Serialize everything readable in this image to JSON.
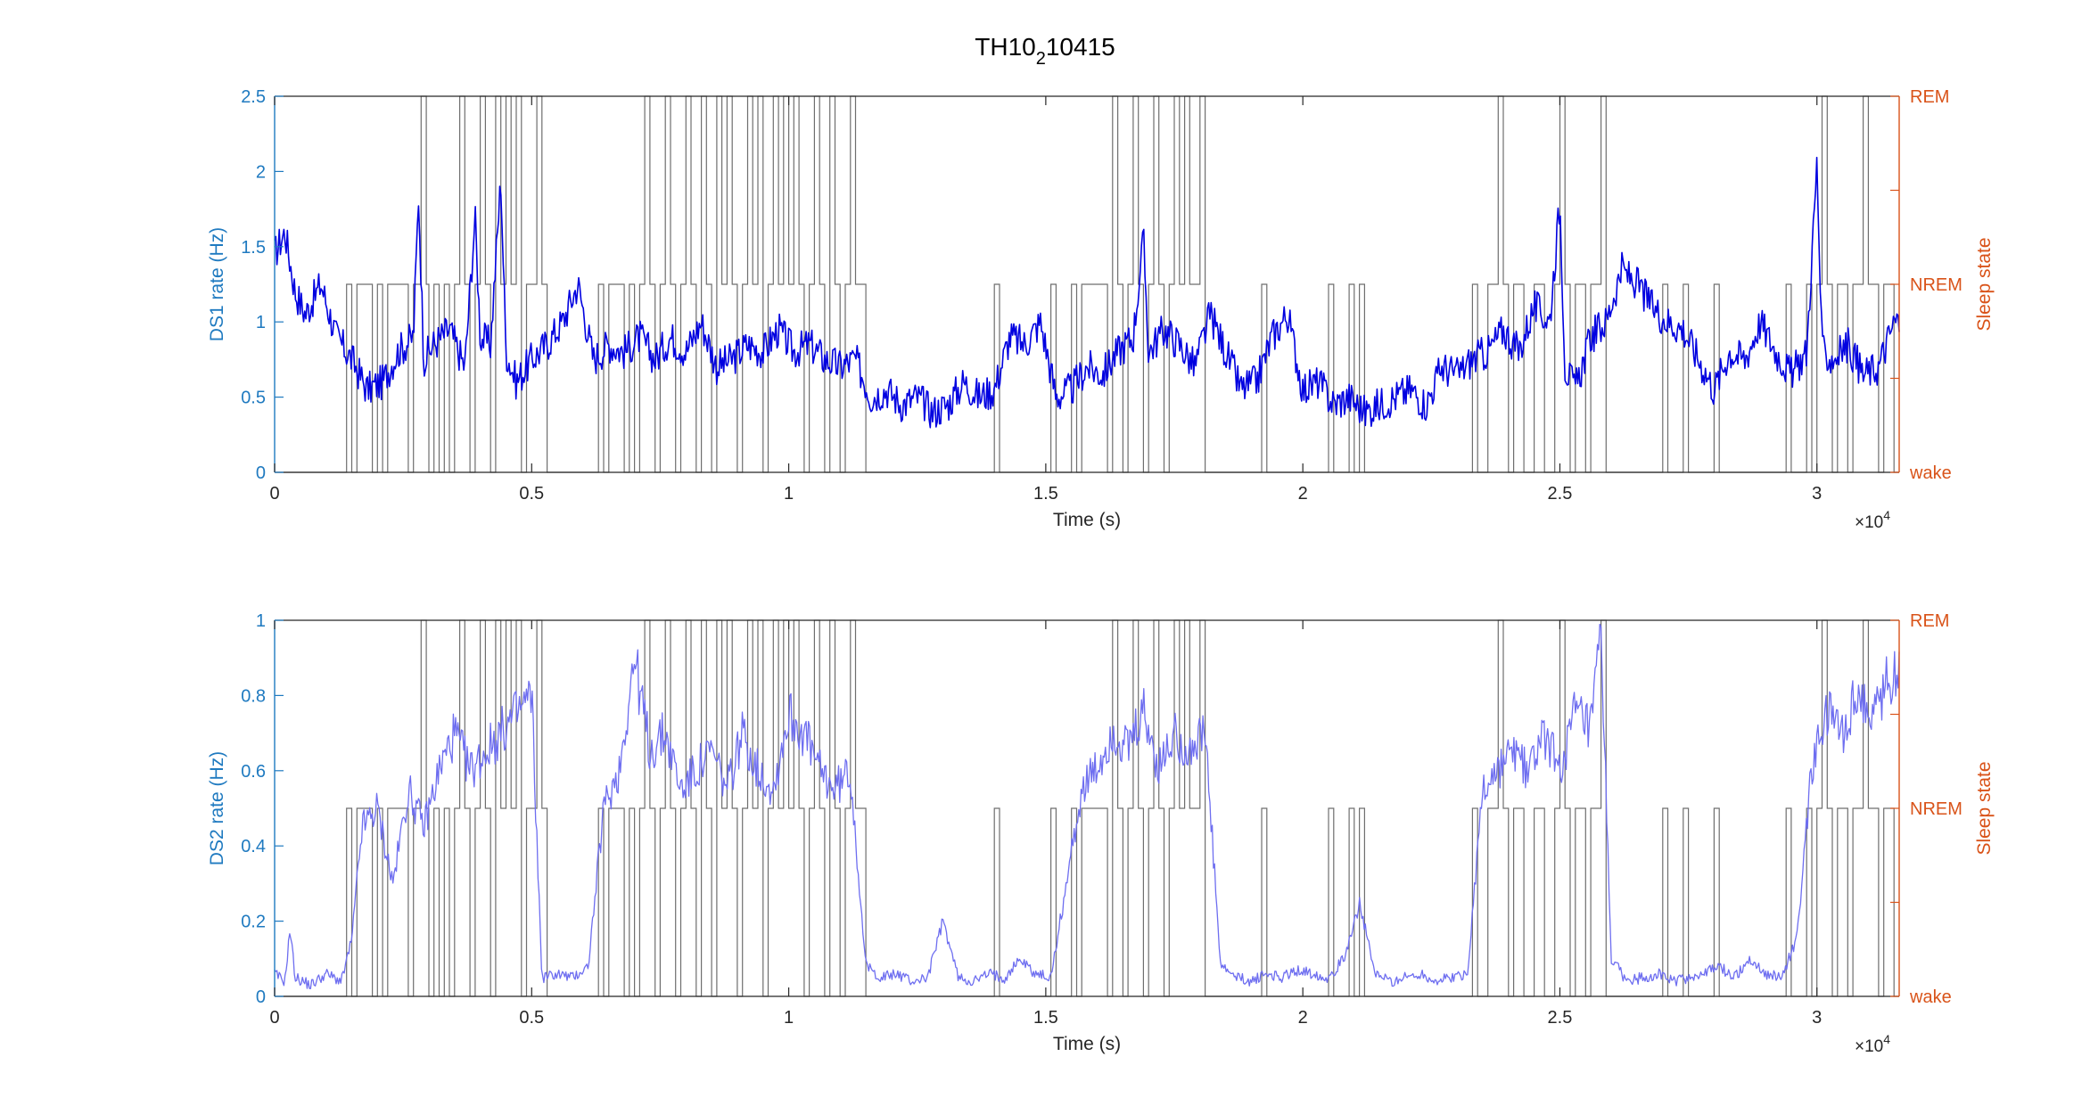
{
  "figure": {
    "title_main": "TH10",
    "title_sub": "2",
    "title_end": "10415"
  },
  "colors": {
    "left_axis": "#1f7ac0",
    "right_axis": "#d95319",
    "rate_line_top": "#0000e0",
    "rate_line_bottom": "#6e6ef0",
    "state_line": "#6e6e6e",
    "frame": "#262626"
  },
  "chart_data": [
    {
      "type": "line",
      "title": "TH10_2 10415",
      "xlabel": "Time (s)",
      "x_exponent_label": "×10",
      "x_exponent_power": "4",
      "xlim": [
        0,
        31600
      ],
      "x_ticks": [
        0,
        5000,
        10000,
        15000,
        20000,
        25000,
        30000
      ],
      "x_tick_labels": [
        "0",
        "0.5",
        "1",
        "1.5",
        "2",
        "2.5",
        "3"
      ],
      "ylabel_left": "DS1 rate (Hz)",
      "ylim_left": [
        0,
        2.5
      ],
      "y_ticks_left": [
        0,
        0.5,
        1,
        1.5,
        2,
        2.5
      ],
      "y_tick_labels_left": [
        "0",
        "0.5",
        "1",
        "1.5",
        "2",
        "2.5"
      ],
      "ylabel_right": "Sleep state",
      "ylim_right": [
        0,
        2
      ],
      "y_ticks_right": [
        0,
        0.5,
        1,
        1.5,
        2
      ],
      "y_tick_labels_right": [
        "wake",
        "",
        "NREM",
        "",
        "REM"
      ],
      "series": [
        {
          "axis": "left",
          "x": [
            0,
            200,
            400,
            600,
            900,
            1200,
            1500,
            1800,
            2100,
            2400,
            2700,
            2800,
            2900,
            3100,
            3400,
            3700,
            3900,
            4000,
            4200,
            4400,
            4500,
            4700,
            5000,
            5300,
            5600,
            5900,
            6200,
            6500,
            6800,
            7100,
            7400,
            7700,
            8000,
            8300,
            8600,
            8900,
            9200,
            9500,
            9800,
            10100,
            10400,
            10700,
            11000,
            11300,
            11600,
            11900,
            12200,
            12500,
            12800,
            13100,
            13400,
            13700,
            14000,
            14300,
            14600,
            14900,
            15200,
            15500,
            15800,
            16100,
            16400,
            16700,
            16900,
            17000,
            17300,
            17600,
            17900,
            18200,
            18500,
            18800,
            19100,
            19400,
            19700,
            20000,
            20300,
            20600,
            20900,
            21200,
            21500,
            21800,
            22100,
            22400,
            22700,
            23000,
            23300,
            23600,
            23900,
            24200,
            24500,
            24800,
            25000,
            25100,
            25300,
            25600,
            25900,
            26200,
            26500,
            26800,
            27100,
            27400,
            27700,
            28000,
            28300,
            28600,
            28900,
            29200,
            29500,
            29800,
            30000,
            30100,
            30300,
            30600,
            30900,
            31200,
            31500
          ],
          "values": [
            1.45,
            1.6,
            1.2,
            1.05,
            1.25,
            0.9,
            0.75,
            0.55,
            0.6,
            0.8,
            0.9,
            1.85,
            0.75,
            0.85,
            0.95,
            0.7,
            1.7,
            0.9,
            0.85,
            1.95,
            0.8,
            0.6,
            0.75,
            0.85,
            1.0,
            1.25,
            0.75,
            0.85,
            0.8,
            0.9,
            0.75,
            0.9,
            0.8,
            1.0,
            0.7,
            0.75,
            0.85,
            0.8,
            0.95,
            0.8,
            0.85,
            0.75,
            0.7,
            0.75,
            0.5,
            0.55,
            0.45,
            0.5,
            0.4,
            0.45,
            0.6,
            0.5,
            0.55,
            0.9,
            0.85,
            1.0,
            0.5,
            0.55,
            0.7,
            0.65,
            0.8,
            0.9,
            1.55,
            0.8,
            0.95,
            0.85,
            0.7,
            1.05,
            0.8,
            0.55,
            0.6,
            0.9,
            1.05,
            0.55,
            0.6,
            0.45,
            0.5,
            0.4,
            0.45,
            0.5,
            0.55,
            0.45,
            0.7,
            0.65,
            0.75,
            0.8,
            0.95,
            0.8,
            1.1,
            1.0,
            1.8,
            0.7,
            0.55,
            0.9,
            1.0,
            1.35,
            1.25,
            1.1,
            1.0,
            0.95,
            0.75,
            0.55,
            0.8,
            0.75,
            1.0,
            0.8,
            0.65,
            0.8,
            2.05,
            0.8,
            0.75,
            0.85,
            0.65,
            0.7,
            1.0
          ]
        }
      ]
    },
    {
      "type": "line",
      "xlabel": "Time (s)",
      "x_exponent_label": "×10",
      "x_exponent_power": "4",
      "xlim": [
        0,
        31600
      ],
      "x_ticks": [
        0,
        5000,
        10000,
        15000,
        20000,
        25000,
        30000
      ],
      "x_tick_labels": [
        "0",
        "0.5",
        "1",
        "1.5",
        "2",
        "2.5",
        "3"
      ],
      "ylabel_left": "DS2 rate (Hz)",
      "ylim_left": [
        0,
        1
      ],
      "y_ticks_left": [
        0,
        0.2,
        0.4,
        0.6,
        0.8,
        1
      ],
      "y_tick_labels_left": [
        "0",
        "0.2",
        "0.4",
        "0.6",
        "0.8",
        "1"
      ],
      "ylabel_right": "Sleep state",
      "ylim_right": [
        0,
        2
      ],
      "y_ticks_right": [
        0,
        0.5,
        1,
        1.5,
        2
      ],
      "y_tick_labels_right": [
        "wake",
        "",
        "NREM",
        "",
        "REM"
      ],
      "series": [
        {
          "axis": "left",
          "x": [
            0,
            200,
            300,
            400,
            700,
            1000,
            1300,
            1500,
            1700,
            2000,
            2300,
            2600,
            2900,
            3200,
            3500,
            3800,
            4100,
            4400,
            4700,
            5000,
            5200,
            5500,
            5800,
            6100,
            6400,
            6700,
            7000,
            7300,
            7600,
            7900,
            8200,
            8500,
            8800,
            9100,
            9400,
            9700,
            10000,
            10300,
            10600,
            10900,
            11200,
            11500,
            11800,
            12100,
            12400,
            12700,
            13000,
            13300,
            13600,
            13900,
            14200,
            14500,
            14800,
            15100,
            15400,
            15700,
            16000,
            16300,
            16600,
            16900,
            17200,
            17500,
            17800,
            18100,
            18400,
            18700,
            19000,
            19300,
            19600,
            19900,
            20200,
            20500,
            20800,
            21100,
            21400,
            21700,
            22000,
            22300,
            22600,
            22900,
            23200,
            23500,
            23800,
            24100,
            24400,
            24700,
            25000,
            25300,
            25600,
            25800,
            26000,
            26300,
            26600,
            26900,
            27200,
            27500,
            27800,
            28100,
            28400,
            28700,
            29000,
            29300,
            29600,
            29900,
            30200,
            30500,
            30800,
            31100,
            31400
          ],
          "values": [
            0.06,
            0.04,
            0.18,
            0.05,
            0.03,
            0.06,
            0.04,
            0.15,
            0.45,
            0.5,
            0.3,
            0.55,
            0.45,
            0.6,
            0.7,
            0.6,
            0.65,
            0.7,
            0.75,
            0.8,
            0.05,
            0.06,
            0.05,
            0.08,
            0.5,
            0.6,
            0.9,
            0.65,
            0.7,
            0.55,
            0.6,
            0.65,
            0.55,
            0.7,
            0.6,
            0.55,
            0.75,
            0.7,
            0.6,
            0.55,
            0.6,
            0.08,
            0.05,
            0.06,
            0.04,
            0.05,
            0.2,
            0.05,
            0.04,
            0.06,
            0.05,
            0.1,
            0.06,
            0.05,
            0.3,
            0.55,
            0.6,
            0.7,
            0.65,
            0.75,
            0.6,
            0.7,
            0.65,
            0.7,
            0.08,
            0.05,
            0.04,
            0.06,
            0.05,
            0.07,
            0.06,
            0.05,
            0.1,
            0.25,
            0.06,
            0.04,
            0.05,
            0.06,
            0.04,
            0.05,
            0.06,
            0.55,
            0.6,
            0.65,
            0.6,
            0.7,
            0.6,
            0.75,
            0.7,
            0.95,
            0.1,
            0.04,
            0.05,
            0.06,
            0.04,
            0.05,
            0.06,
            0.08,
            0.05,
            0.1,
            0.06,
            0.05,
            0.15,
            0.6,
            0.75,
            0.7,
            0.8,
            0.75,
            0.85
          ]
        }
      ]
    }
  ],
  "sleep_state_segments": [
    [
      0,
      0
    ],
    [
      1400,
      1
    ],
    [
      1500,
      0
    ],
    [
      1600,
      1
    ],
    [
      1900,
      0
    ],
    [
      2000,
      1
    ],
    [
      2100,
      0
    ],
    [
      2200,
      1
    ],
    [
      2600,
      0
    ],
    [
      2700,
      1
    ],
    [
      2850,
      2
    ],
    [
      2950,
      1
    ],
    [
      3000,
      0
    ],
    [
      3100,
      1
    ],
    [
      3200,
      0
    ],
    [
      3300,
      1
    ],
    [
      3400,
      0
    ],
    [
      3500,
      1
    ],
    [
      3600,
      2
    ],
    [
      3700,
      1
    ],
    [
      3800,
      0
    ],
    [
      3900,
      1
    ],
    [
      4000,
      2
    ],
    [
      4100,
      1
    ],
    [
      4200,
      0
    ],
    [
      4300,
      2
    ],
    [
      4400,
      1
    ],
    [
      4500,
      2
    ],
    [
      4600,
      1
    ],
    [
      4700,
      2
    ],
    [
      4800,
      0
    ],
    [
      4900,
      1
    ],
    [
      5100,
      2
    ],
    [
      5200,
      1
    ],
    [
      5300,
      0
    ],
    [
      6300,
      1
    ],
    [
      6400,
      0
    ],
    [
      6500,
      1
    ],
    [
      6800,
      0
    ],
    [
      6900,
      1
    ],
    [
      7000,
      0
    ],
    [
      7100,
      1
    ],
    [
      7200,
      2
    ],
    [
      7300,
      1
    ],
    [
      7400,
      0
    ],
    [
      7500,
      1
    ],
    [
      7600,
      2
    ],
    [
      7700,
      1
    ],
    [
      7800,
      0
    ],
    [
      7900,
      1
    ],
    [
      8000,
      2
    ],
    [
      8100,
      1
    ],
    [
      8200,
      0
    ],
    [
      8300,
      2
    ],
    [
      8400,
      1
    ],
    [
      8500,
      0
    ],
    [
      8600,
      2
    ],
    [
      8700,
      1
    ],
    [
      8800,
      2
    ],
    [
      8900,
      1
    ],
    [
      9000,
      0
    ],
    [
      9100,
      1
    ],
    [
      9200,
      2
    ],
    [
      9300,
      1
    ],
    [
      9400,
      2
    ],
    [
      9500,
      0
    ],
    [
      9600,
      1
    ],
    [
      9700,
      2
    ],
    [
      9800,
      1
    ],
    [
      9900,
      2
    ],
    [
      10000,
      1
    ],
    [
      10100,
      2
    ],
    [
      10200,
      1
    ],
    [
      10300,
      0
    ],
    [
      10400,
      1
    ],
    [
      10500,
      2
    ],
    [
      10600,
      1
    ],
    [
      10700,
      0
    ],
    [
      10800,
      2
    ],
    [
      10900,
      1
    ],
    [
      11000,
      0
    ],
    [
      11100,
      1
    ],
    [
      11200,
      2
    ],
    [
      11300,
      1
    ],
    [
      11500,
      0
    ],
    [
      14000,
      1
    ],
    [
      14100,
      0
    ],
    [
      15100,
      1
    ],
    [
      15200,
      0
    ],
    [
      15500,
      1
    ],
    [
      15600,
      0
    ],
    [
      15700,
      1
    ],
    [
      16200,
      0
    ],
    [
      16300,
      2
    ],
    [
      16400,
      1
    ],
    [
      16500,
      0
    ],
    [
      16600,
      1
    ],
    [
      16700,
      2
    ],
    [
      16800,
      1
    ],
    [
      16900,
      0
    ],
    [
      17000,
      1
    ],
    [
      17100,
      2
    ],
    [
      17200,
      1
    ],
    [
      17300,
      0
    ],
    [
      17400,
      1
    ],
    [
      17500,
      2
    ],
    [
      17600,
      1
    ],
    [
      17700,
      2
    ],
    [
      17800,
      1
    ],
    [
      18000,
      2
    ],
    [
      18100,
      0
    ],
    [
      19200,
      1
    ],
    [
      19300,
      0
    ],
    [
      20500,
      1
    ],
    [
      20600,
      0
    ],
    [
      20900,
      1
    ],
    [
      21000,
      0
    ],
    [
      21100,
      1
    ],
    [
      21200,
      0
    ],
    [
      23300,
      1
    ],
    [
      23400,
      0
    ],
    [
      23600,
      1
    ],
    [
      23800,
      2
    ],
    [
      23900,
      1
    ],
    [
      24000,
      0
    ],
    [
      24100,
      1
    ],
    [
      24300,
      0
    ],
    [
      24500,
      1
    ],
    [
      24700,
      0
    ],
    [
      24900,
      1
    ],
    [
      25000,
      2
    ],
    [
      25100,
      1
    ],
    [
      25200,
      0
    ],
    [
      25300,
      1
    ],
    [
      25500,
      0
    ],
    [
      25600,
      1
    ],
    [
      25800,
      2
    ],
    [
      25900,
      0
    ],
    [
      27000,
      1
    ],
    [
      27100,
      0
    ],
    [
      27400,
      1
    ],
    [
      27500,
      0
    ],
    [
      28000,
      1
    ],
    [
      28100,
      0
    ],
    [
      29400,
      1
    ],
    [
      29500,
      0
    ],
    [
      29800,
      1
    ],
    [
      29900,
      0
    ],
    [
      30000,
      1
    ],
    [
      30100,
      2
    ],
    [
      30200,
      1
    ],
    [
      30300,
      0
    ],
    [
      30400,
      1
    ],
    [
      30600,
      0
    ],
    [
      30700,
      1
    ],
    [
      30900,
      2
    ],
    [
      31000,
      1
    ],
    [
      31200,
      0
    ],
    [
      31300,
      1
    ],
    [
      31500,
      0
    ]
  ]
}
